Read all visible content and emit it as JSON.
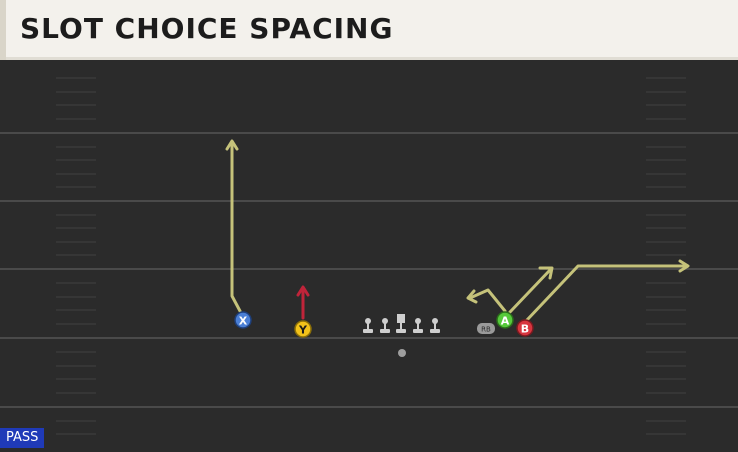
{
  "header": {
    "title": "SLOT CHOICE SPACING"
  },
  "play_type": "PASS",
  "players": [
    {
      "id": "X",
      "color": "#4a7fd6",
      "text_color": "#ffffff"
    },
    {
      "id": "Y",
      "color": "#f2c21a",
      "text_color": "#1a1a1a"
    },
    {
      "id": "A",
      "color": "#55c93a",
      "text_color": "#ffffff"
    },
    {
      "id": "B",
      "color": "#d8353f",
      "text_color": "#ffffff"
    }
  ],
  "running_back_label": "RB",
  "colors": {
    "field": "#2b2b2b",
    "yard_line": "#4a4a4a",
    "route": "#c5c27a",
    "block_route": "#c0243a",
    "lineman": "#cfcfcf",
    "play_badge": "#1f3ab8"
  }
}
